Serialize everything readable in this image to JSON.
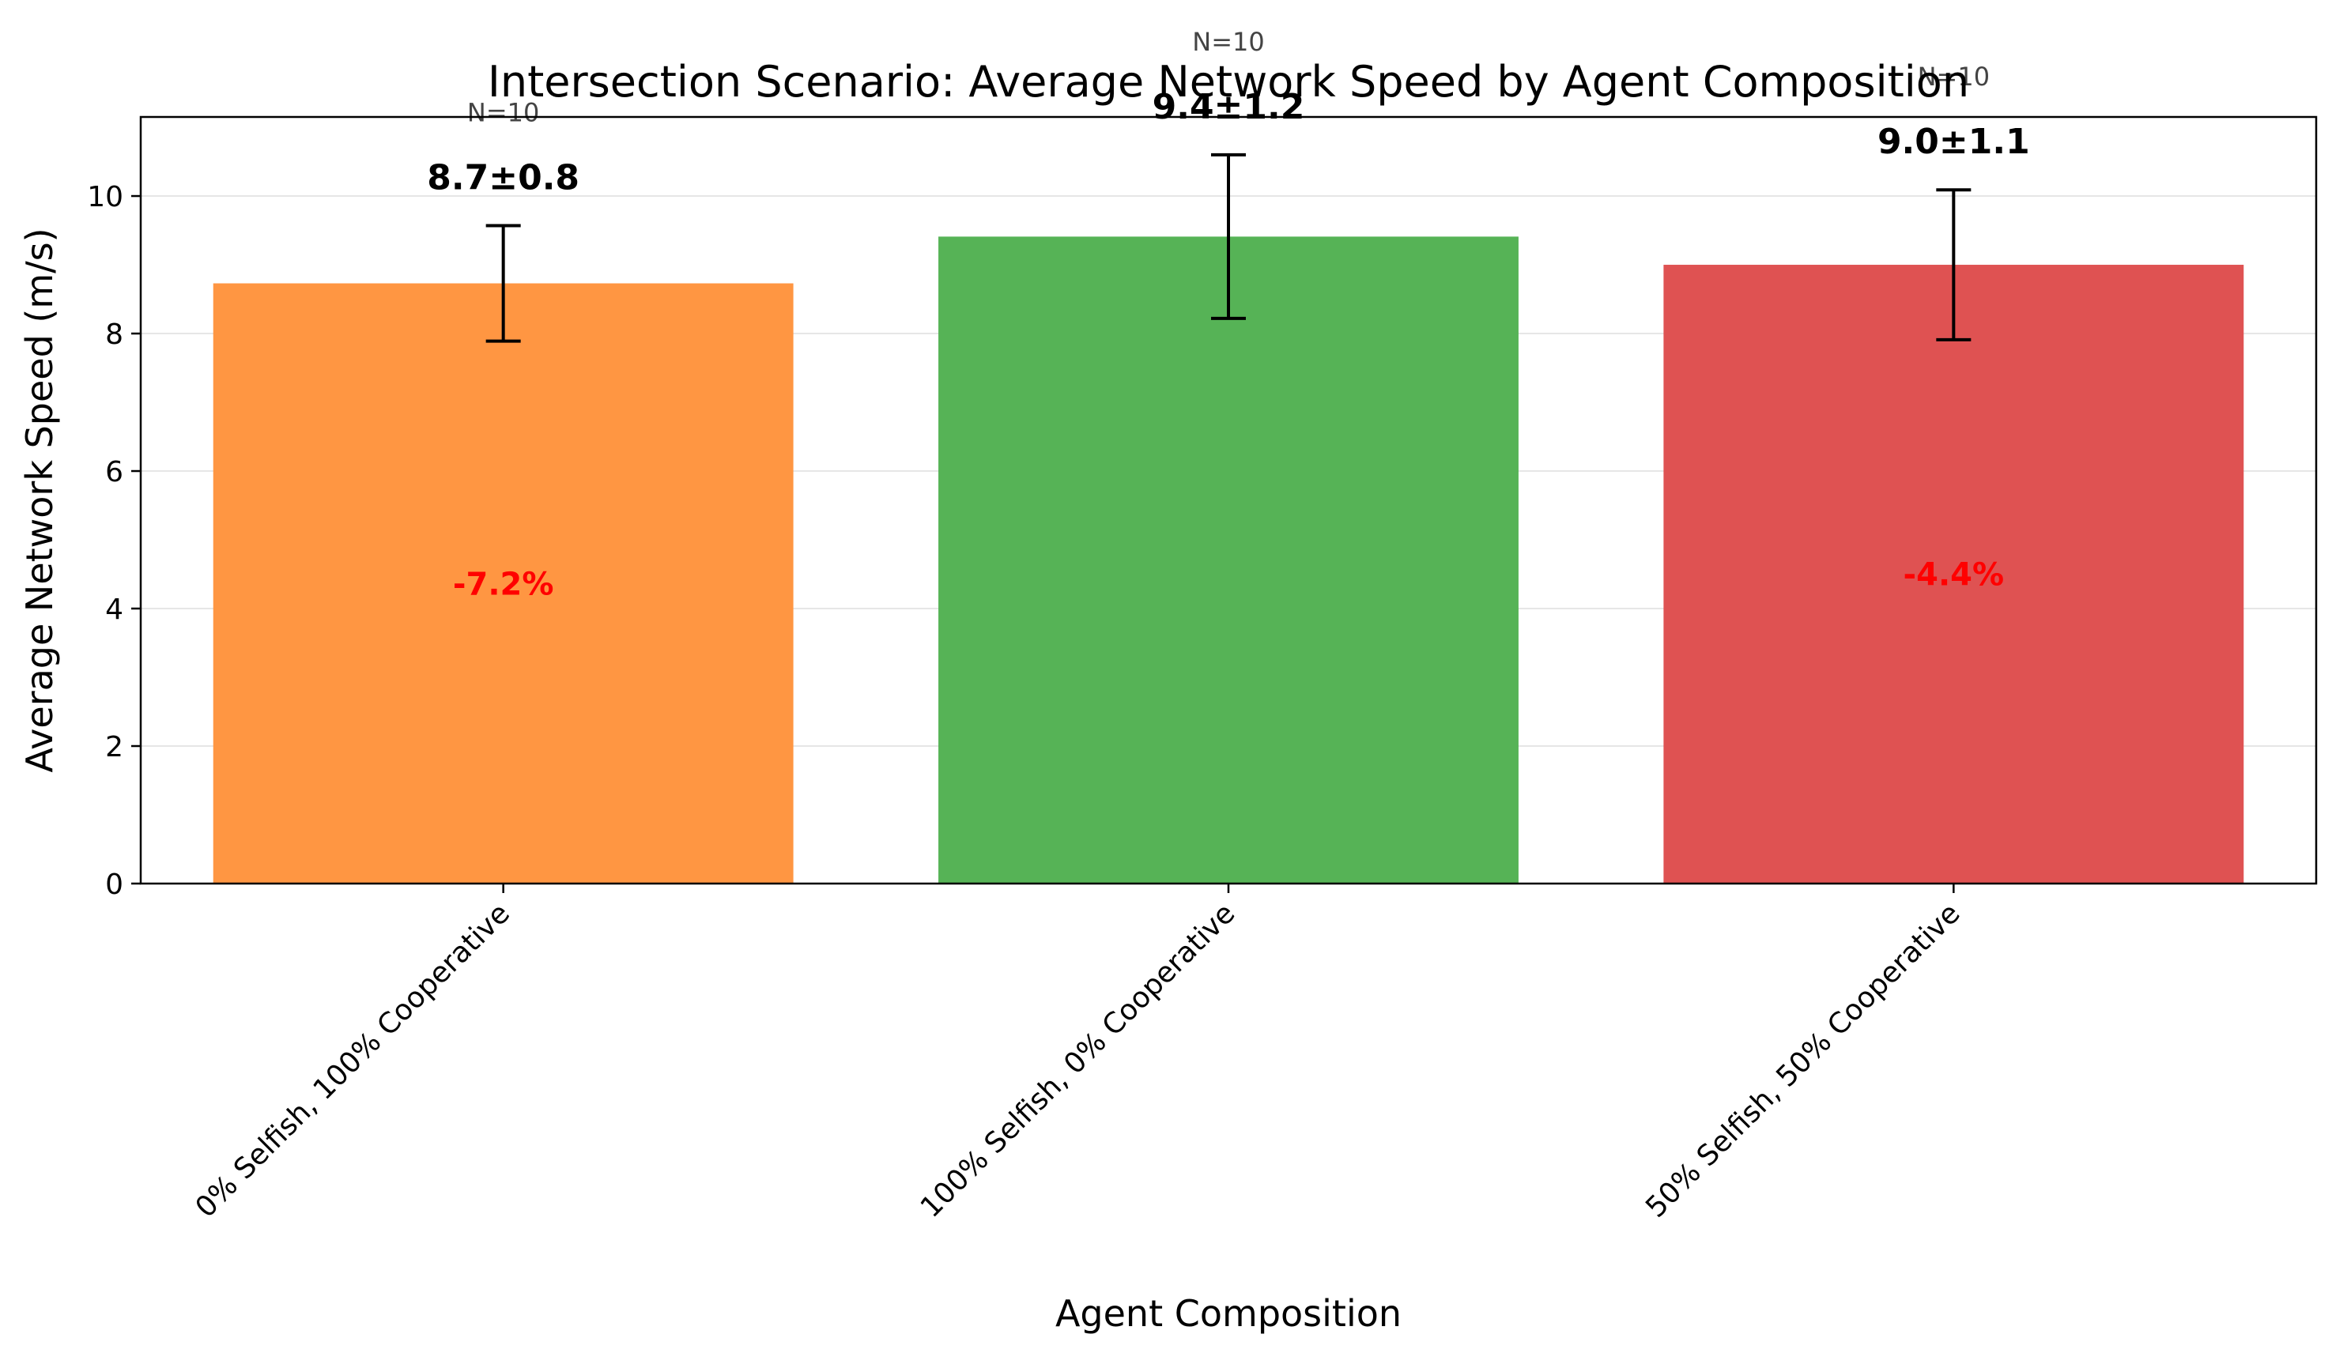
{
  "chart_data": {
    "type": "bar",
    "title": "Intersection Scenario: Average Network Speed by Agent Composition",
    "xlabel": "Agent Composition",
    "ylabel": "Average Network Speed (m/s)",
    "ylim": [
      0,
      11.15
    ],
    "yticks": [
      0,
      2,
      4,
      6,
      8,
      10
    ],
    "grid": "y",
    "categories": [
      "0% Selfish, 100% Cooperative",
      "100% Selfish, 0% Cooperative",
      "50% Selfish, 50% Cooperative"
    ],
    "values": [
      8.73,
      9.41,
      9.0
    ],
    "errors": [
      0.84,
      1.19,
      1.09
    ],
    "value_labels": [
      "8.7±0.8",
      "9.4±1.2",
      "9.0±1.1"
    ],
    "n_labels": [
      "N=10",
      "N=10",
      "N=10"
    ],
    "pct_labels": [
      "-7.2%",
      "",
      "-4.4%"
    ],
    "colors": [
      "#ff9642",
      "#56b356",
      "#df5252"
    ],
    "pct_color": "#ff0000"
  }
}
